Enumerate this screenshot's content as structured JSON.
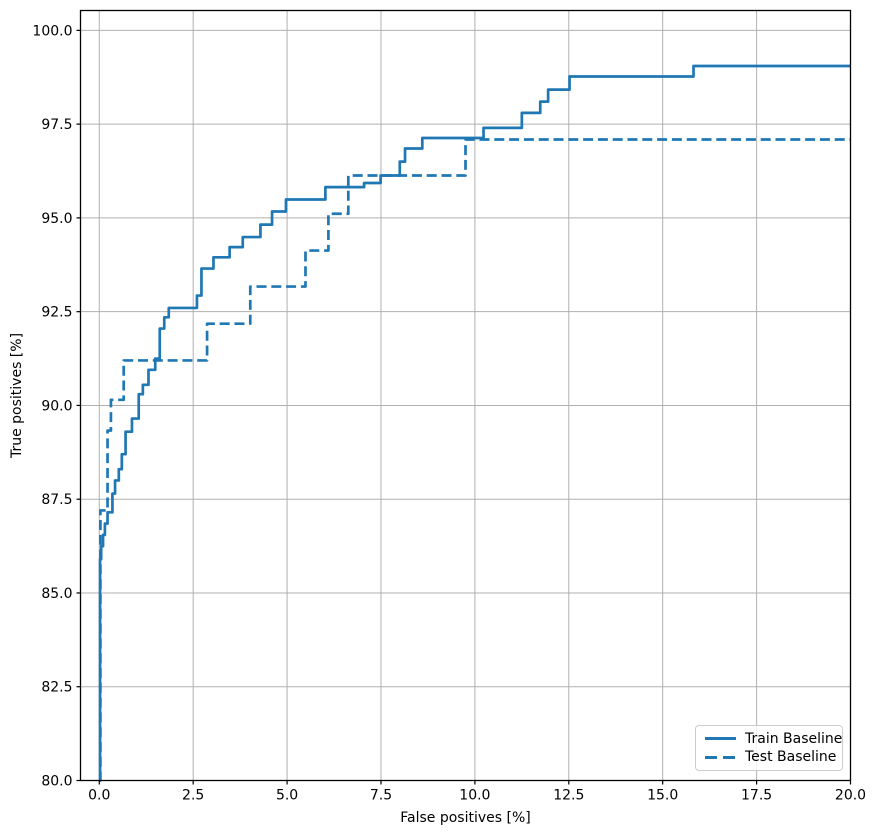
{
  "chart_data": {
    "type": "line",
    "title": "",
    "xlabel": "False positives [%]",
    "ylabel": "True positives [%]",
    "xlim": [
      -0.5,
      20
    ],
    "ylim": [
      80,
      100.53
    ],
    "grid": true,
    "legend": {
      "position": "lower right",
      "entries": [
        "Train Baseline",
        "Test Baseline"
      ]
    },
    "x_ticks": [
      0,
      2.5,
      5,
      7.5,
      10,
      12.5,
      15,
      17.5,
      20
    ],
    "x_tick_labels": [
      "0.0",
      "2.5",
      "5.0",
      "7.5",
      "10.0",
      "12.5",
      "15.0",
      "17.5",
      "20.0"
    ],
    "y_ticks": [
      80,
      82.5,
      85,
      87.5,
      90,
      92.5,
      95,
      97.5,
      100
    ],
    "y_tick_labels": [
      "80.0",
      "82.5",
      "85.0",
      "87.5",
      "90.0",
      "92.5",
      "95.0",
      "97.5",
      "100.0"
    ],
    "colors": {
      "series": "#1f77b4",
      "grid": "#b0b0b0",
      "spine": "#000000",
      "text": "#000000",
      "legend_border": "#cccccc"
    },
    "series": [
      {
        "name": "Train Baseline",
        "line_style": "solid",
        "step": "post",
        "points": [
          [
            0,
            80
          ],
          [
            0.02,
            85.9
          ],
          [
            0.05,
            86.25
          ],
          [
            0.1,
            86.55
          ],
          [
            0.15,
            86.85
          ],
          [
            0.22,
            87.15
          ],
          [
            0.35,
            87.65
          ],
          [
            0.42,
            88.0
          ],
          [
            0.52,
            88.3
          ],
          [
            0.6,
            88.7
          ],
          [
            0.7,
            89.3
          ],
          [
            0.87,
            89.65
          ],
          [
            1.05,
            90.3
          ],
          [
            1.16,
            90.55
          ],
          [
            1.31,
            90.95
          ],
          [
            1.49,
            91.25
          ],
          [
            1.61,
            92.05
          ],
          [
            1.73,
            92.35
          ],
          [
            1.85,
            92.6
          ],
          [
            2.6,
            92.93
          ],
          [
            2.72,
            93.65
          ],
          [
            3.04,
            93.95
          ],
          [
            3.47,
            94.22
          ],
          [
            3.82,
            94.49
          ],
          [
            4.29,
            94.82
          ],
          [
            4.6,
            95.17
          ],
          [
            4.97,
            95.49
          ],
          [
            6.02,
            95.82
          ],
          [
            7.05,
            95.93
          ],
          [
            7.49,
            96.13
          ],
          [
            8.0,
            96.5
          ],
          [
            8.14,
            96.85
          ],
          [
            8.6,
            97.13
          ],
          [
            10.23,
            97.4
          ],
          [
            11.25,
            97.8
          ],
          [
            11.74,
            98.1
          ],
          [
            11.95,
            98.42
          ],
          [
            12.52,
            98.77
          ],
          [
            15.82,
            99.05
          ],
          [
            20,
            99.05
          ]
        ]
      },
      {
        "name": "Test Baseline",
        "line_style": "dashed",
        "step": "post",
        "points": [
          [
            0,
            80
          ],
          [
            0.03,
            87.2
          ],
          [
            0.22,
            89.33
          ],
          [
            0.31,
            90.15
          ],
          [
            0.65,
            91.2
          ],
          [
            2.87,
            92.18
          ],
          [
            4.02,
            93.17
          ],
          [
            5.49,
            94.13
          ],
          [
            6.1,
            95.11
          ],
          [
            6.63,
            96.13
          ],
          [
            9.75,
            97.09
          ],
          [
            20,
            97.09
          ]
        ]
      }
    ]
  }
}
